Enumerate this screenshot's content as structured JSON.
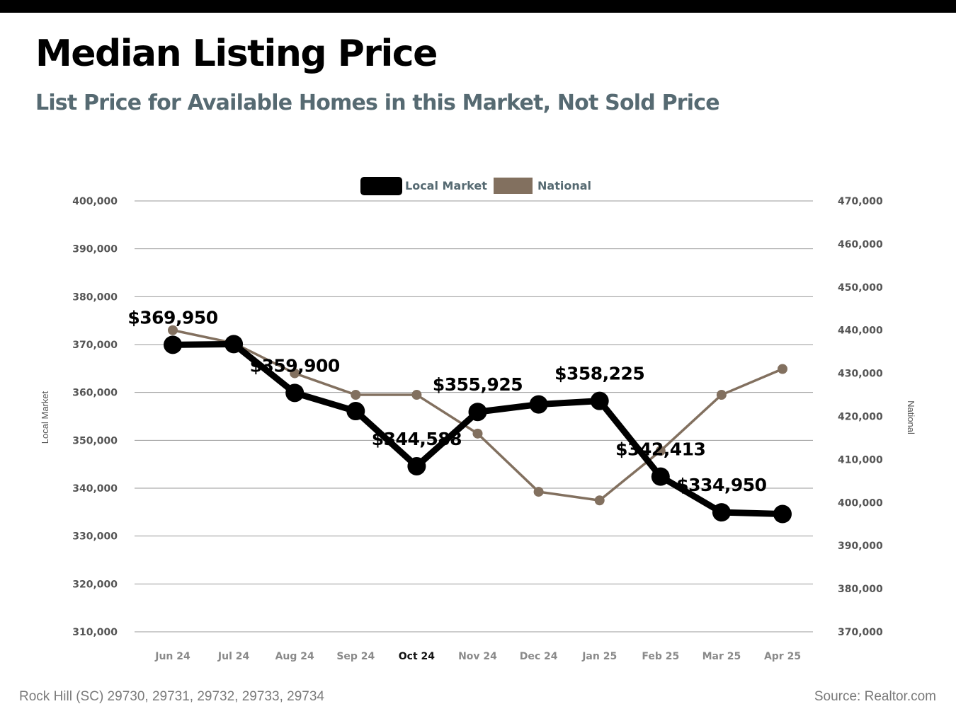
{
  "header": {
    "title": "Median Listing Price",
    "subtitle": "List Price for Available Homes in this Market, Not Sold Price"
  },
  "footer": {
    "location": "Rock Hill (SC) 29730, 29731, 29732, 29733, 29734",
    "source": "Source: Realtor.com"
  },
  "colors": {
    "local": "#000000",
    "national": "#82705f",
    "grid": "#9a9a9a",
    "tick_text": "#555555",
    "subtitle": "#566a72"
  },
  "chart_data": {
    "type": "line",
    "categories": [
      "Jun 24",
      "Jul 24",
      "Aug 24",
      "Sep 24",
      "Oct 24",
      "Nov 24",
      "Dec 24",
      "Jan 25",
      "Feb 25",
      "Mar 25",
      "Apr 25"
    ],
    "highlighted_category": "Oct 24",
    "legend_position": "top-center",
    "grid": true,
    "y_left": {
      "label": "Local Market",
      "ylim": [
        310000,
        400000
      ],
      "ticks": [
        "400,000",
        "390,000",
        "380,000",
        "370,000",
        "360,000",
        "350,000",
        "340,000",
        "330,000",
        "320,000",
        "310,000"
      ]
    },
    "y_right": {
      "label": "National",
      "ylim": [
        370000,
        470000
      ],
      "ticks": [
        "470,000",
        "460,000",
        "450,000",
        "440,000",
        "430,000",
        "420,000",
        "410,000",
        "400,000",
        "390,000",
        "380,000",
        "370,000"
      ]
    },
    "series": [
      {
        "name": "Local Market",
        "axis": "left",
        "values": [
          369950,
          370100,
          359900,
          356100,
          344588,
          355925,
          357500,
          358225,
          342413,
          334950,
          334600
        ],
        "labels": [
          "$369,950",
          "",
          "$359,900",
          "",
          "$344,588",
          "$355,925",
          "",
          "$358,225",
          "$342,413",
          "$334,950",
          ""
        ]
      },
      {
        "name": "National",
        "axis": "right",
        "values": [
          440000,
          437000,
          430000,
          425000,
          425000,
          416000,
          402500,
          400500,
          412000,
          425000,
          431000
        ]
      }
    ]
  }
}
